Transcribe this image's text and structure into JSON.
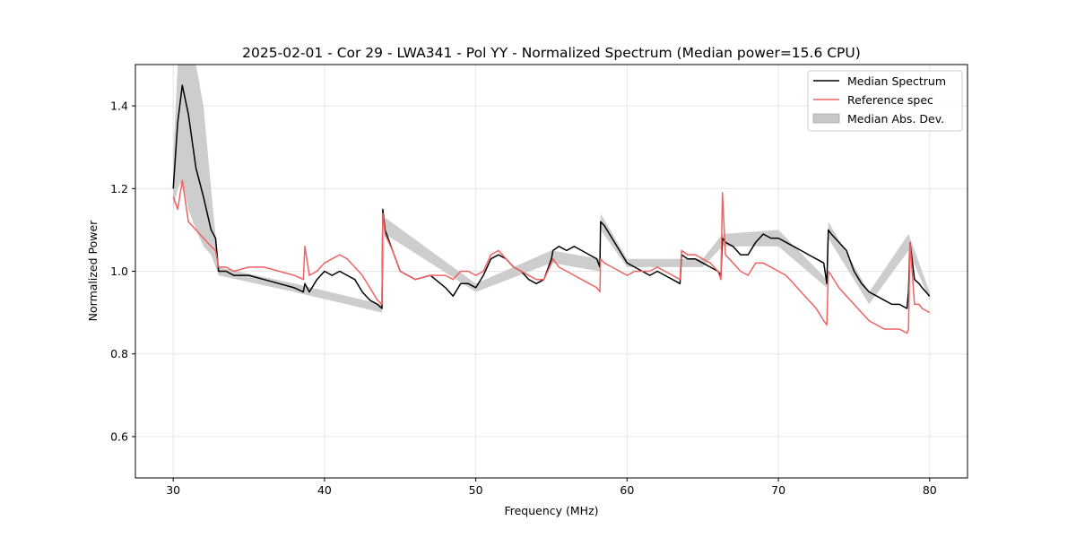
{
  "chart_data": {
    "type": "line",
    "title": "2025-02-01 - Cor 29 - LWA341 - Pol YY - Normalized Spectrum (Median power=15.6 CPU)",
    "xlabel": "Frequency (MHz)",
    "ylabel": "Normalized Power",
    "xlim": [
      27.5,
      82.5
    ],
    "ylim": [
      0.5,
      1.5
    ],
    "xticks": [
      30,
      40,
      50,
      60,
      70,
      80
    ],
    "yticks": [
      0.6,
      0.8,
      1.0,
      1.2,
      1.4
    ],
    "xtick_labels": [
      "30",
      "40",
      "50",
      "60",
      "70",
      "80"
    ],
    "ytick_labels": [
      "0.6",
      "0.8",
      "1.0",
      "1.2",
      "1.4"
    ],
    "grid": true,
    "legend_position": "top-right",
    "colors": {
      "median": "#000000",
      "reference": "#f06262",
      "mad": "#c8c8c8",
      "overlap": "#8b0000"
    },
    "series": [
      {
        "name": "Median Spectrum",
        "x": [
          30.0,
          30.3,
          30.6,
          31.0,
          31.5,
          32.0,
          32.5,
          32.8,
          33.0,
          33.5,
          34.0,
          35.0,
          36.0,
          37.0,
          38.0,
          38.6,
          38.7,
          39.0,
          39.5,
          40.0,
          40.5,
          41.0,
          41.5,
          42.0,
          42.5,
          43.0,
          43.5,
          43.8,
          43.85,
          44.0,
          44.5,
          45.0,
          46.0,
          47.0,
          48.0,
          48.5,
          49.0,
          49.5,
          50.0,
          50.5,
          51.0,
          51.5,
          52.0,
          52.5,
          53.0,
          53.5,
          54.0,
          54.5,
          55.0,
          55.1,
          55.5,
          56.0,
          56.5,
          57.0,
          57.5,
          58.0,
          58.2,
          58.25,
          58.5,
          59.0,
          59.5,
          60.0,
          60.5,
          61.0,
          61.5,
          62.0,
          62.5,
          63.0,
          63.5,
          63.6,
          64.0,
          64.5,
          65.0,
          65.5,
          66.0,
          66.2,
          66.3,
          66.5,
          67.0,
          67.5,
          68.0,
          68.5,
          69.0,
          69.5,
          70.0,
          70.5,
          71.0,
          71.5,
          72.0,
          72.5,
          73.0,
          73.2,
          73.3,
          73.5,
          74.0,
          74.5,
          75.0,
          75.5,
          76.0,
          76.5,
          77.0,
          77.5,
          78.0,
          78.5,
          78.6,
          78.7,
          79.0,
          79.3,
          79.5,
          80.0
        ],
        "values": [
          1.2,
          1.36,
          1.45,
          1.38,
          1.25,
          1.18,
          1.1,
          1.08,
          1.0,
          1.0,
          0.99,
          0.99,
          0.98,
          0.97,
          0.96,
          0.95,
          0.97,
          0.95,
          0.98,
          1.0,
          0.99,
          1.0,
          0.99,
          0.98,
          0.95,
          0.93,
          0.92,
          0.91,
          1.15,
          1.1,
          1.05,
          1.0,
          0.98,
          0.99,
          0.96,
          0.94,
          0.97,
          0.97,
          0.96,
          0.99,
          1.03,
          1.04,
          1.03,
          1.01,
          1.0,
          0.98,
          0.97,
          0.98,
          1.03,
          1.05,
          1.06,
          1.05,
          1.06,
          1.05,
          1.04,
          1.03,
          1.01,
          1.12,
          1.11,
          1.08,
          1.05,
          1.02,
          1.01,
          1.0,
          0.99,
          1.0,
          0.99,
          0.98,
          0.97,
          1.04,
          1.03,
          1.03,
          1.02,
          1.01,
          1.0,
          0.99,
          1.08,
          1.07,
          1.06,
          1.04,
          1.04,
          1.07,
          1.09,
          1.08,
          1.08,
          1.07,
          1.06,
          1.05,
          1.04,
          1.03,
          1.02,
          0.97,
          1.1,
          1.09,
          1.07,
          1.05,
          1.0,
          0.97,
          0.95,
          0.94,
          0.93,
          0.92,
          0.92,
          0.91,
          0.95,
          1.07,
          0.98,
          0.97,
          0.96,
          0.94
        ]
      },
      {
        "name": "Reference spec",
        "x": [
          30.0,
          30.3,
          30.6,
          31.0,
          31.5,
          32.0,
          32.5,
          32.8,
          33.0,
          33.5,
          34.0,
          35.0,
          36.0,
          37.0,
          38.0,
          38.6,
          38.7,
          39.0,
          39.5,
          40.0,
          40.5,
          41.0,
          41.5,
          42.0,
          42.5,
          43.0,
          43.5,
          43.8,
          43.85,
          44.0,
          44.5,
          45.0,
          46.0,
          47.0,
          48.0,
          48.5,
          49.0,
          49.5,
          50.0,
          50.5,
          51.0,
          51.5,
          52.0,
          52.5,
          53.0,
          53.5,
          54.0,
          54.5,
          55.0,
          55.1,
          55.5,
          56.0,
          56.5,
          57.0,
          57.5,
          58.0,
          58.2,
          58.25,
          58.5,
          59.0,
          59.5,
          60.0,
          60.5,
          61.0,
          61.5,
          62.0,
          62.5,
          63.0,
          63.5,
          63.6,
          64.0,
          64.5,
          65.0,
          65.5,
          66.0,
          66.2,
          66.3,
          66.5,
          67.0,
          67.5,
          68.0,
          68.5,
          69.0,
          69.5,
          70.0,
          70.5,
          71.0,
          71.5,
          72.0,
          72.5,
          73.0,
          73.2,
          73.3,
          73.5,
          74.0,
          74.5,
          75.0,
          75.5,
          76.0,
          76.5,
          77.0,
          77.5,
          78.0,
          78.5,
          78.6,
          78.7,
          79.0,
          79.3,
          79.5,
          80.0
        ],
        "values": [
          1.18,
          1.15,
          1.22,
          1.12,
          1.1,
          1.08,
          1.06,
          1.05,
          1.01,
          1.01,
          1.0,
          1.01,
          1.01,
          1.0,
          0.99,
          0.98,
          1.06,
          0.99,
          1.0,
          1.02,
          1.03,
          1.04,
          1.03,
          1.01,
          0.99,
          0.96,
          0.93,
          0.92,
          1.14,
          1.09,
          1.05,
          1.0,
          0.98,
          0.99,
          0.99,
          0.98,
          1.0,
          1.0,
          0.99,
          1.0,
          1.04,
          1.05,
          1.03,
          1.01,
          1.0,
          0.99,
          0.98,
          0.98,
          1.02,
          1.03,
          1.01,
          1.0,
          0.99,
          0.98,
          0.97,
          0.96,
          0.95,
          1.03,
          1.02,
          1.01,
          1.0,
          0.99,
          1.0,
          1.0,
          1.0,
          1.01,
          1.0,
          0.99,
          0.98,
          1.05,
          1.04,
          1.04,
          1.03,
          1.02,
          1.0,
          0.98,
          1.19,
          1.04,
          1.02,
          1.0,
          0.99,
          1.02,
          1.02,
          1.01,
          1.0,
          0.99,
          0.97,
          0.95,
          0.93,
          0.91,
          0.88,
          0.87,
          1.0,
          0.99,
          0.96,
          0.94,
          0.92,
          0.9,
          0.88,
          0.87,
          0.86,
          0.86,
          0.86,
          0.85,
          0.86,
          1.07,
          0.92,
          0.92,
          0.91,
          0.9
        ]
      }
    ],
    "mad_band": {
      "name": "Median Abs. Dev.",
      "x": [
        30.0,
        30.3,
        30.6,
        31.0,
        31.5,
        32.0,
        32.5,
        33.0,
        38.0,
        43.8,
        44.0,
        50.0,
        55.0,
        58.2,
        58.25,
        60.0,
        65.0,
        66.3,
        70.0,
        73.2,
        73.3,
        76.0,
        78.6,
        80.0
      ],
      "lower": [
        1.15,
        1.2,
        1.22,
        1.15,
        1.1,
        1.06,
        1.04,
        0.99,
        0.95,
        0.9,
        1.09,
        0.95,
        1.02,
        1.0,
        1.1,
        1.01,
        1.01,
        1.06,
        1.06,
        0.96,
        1.08,
        0.92,
        1.05,
        0.93
      ],
      "upper": [
        1.28,
        1.5,
        1.5,
        1.5,
        1.5,
        1.4,
        1.2,
        1.01,
        0.97,
        0.92,
        1.13,
        0.97,
        1.05,
        1.03,
        1.14,
        1.03,
        1.03,
        1.09,
        1.1,
        0.98,
        1.12,
        0.95,
        1.09,
        0.95
      ]
    }
  }
}
